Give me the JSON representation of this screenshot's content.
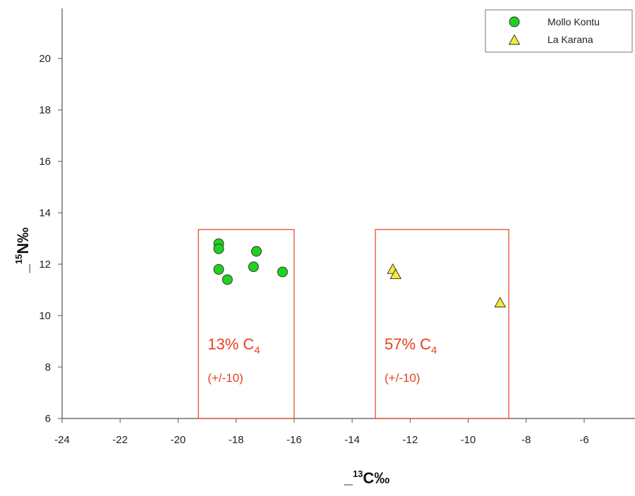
{
  "chart_data": {
    "type": "scatter",
    "xlabel": {
      "prefix": "_",
      "sup": "13",
      "main": "C‰"
    },
    "ylabel": {
      "prefix": "_",
      "sup": "15",
      "main": "N‰"
    },
    "xlim": [
      -24,
      -4
    ],
    "ylim": [
      6,
      22
    ],
    "x_ticks": [
      -24,
      -22,
      -20,
      -18,
      -16,
      -14,
      -12,
      -10,
      -8,
      -6
    ],
    "y_ticks": [
      6,
      8,
      10,
      12,
      14,
      16,
      18,
      20
    ],
    "grid": false,
    "legend_position": "top-right",
    "series": [
      {
        "name": "Mollo Kontu",
        "marker": "circle",
        "color": "#1fd21f",
        "points": [
          {
            "x": -18.6,
            "y": 12.8
          },
          {
            "x": -18.6,
            "y": 12.6
          },
          {
            "x": -18.6,
            "y": 11.8
          },
          {
            "x": -18.3,
            "y": 11.4
          },
          {
            "x": -17.4,
            "y": 11.9
          },
          {
            "x": -17.3,
            "y": 12.5
          },
          {
            "x": -16.4,
            "y": 11.7
          }
        ]
      },
      {
        "name": "La Karana",
        "marker": "triangle",
        "color": "#f2ea3c",
        "points": [
          {
            "x": -12.6,
            "y": 11.8
          },
          {
            "x": -12.5,
            "y": 11.6
          },
          {
            "x": -8.9,
            "y": 10.5
          }
        ]
      }
    ],
    "annotations": [
      {
        "x_range": [
          -19.3,
          -16.0
        ],
        "y_range": [
          6,
          13.35
        ],
        "main": "13% C",
        "sub": "4",
        "note": "(+/-10)"
      },
      {
        "x_range": [
          -13.2,
          -8.6
        ],
        "y_range": [
          6,
          13.35
        ],
        "main": "57% C",
        "sub": "4",
        "note": "(+/-10)"
      }
    ],
    "colors": {
      "axis": "#555555",
      "annotation": "#e8401c",
      "marker_stroke": "#2a2a2a"
    }
  }
}
